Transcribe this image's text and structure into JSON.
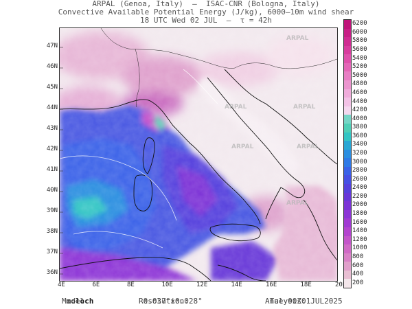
{
  "header": {
    "line1": "ARPAL (Genoa, Italy)  –  ISAC-CNR (Bologna, Italy)",
    "line2": "Convective Available Potential Energy (J/kg), 6000–10m wind shear",
    "line3": "18 UTC Wed 02 JUL  –  τ = 42h"
  },
  "map": {
    "lat_labels": [
      "47N",
      "46N",
      "45N",
      "44N",
      "43N",
      "42N",
      "41N",
      "40N",
      "39N",
      "38N",
      "37N",
      "36N"
    ],
    "lon_labels": [
      "4E",
      "6E",
      "8E",
      "10E",
      "12E",
      "14E",
      "16E",
      "18E",
      "20E"
    ],
    "watermark": "ARPAL"
  },
  "colorbar": {
    "labels": [
      "6200",
      "6000",
      "5800",
      "5600",
      "5400",
      "5200",
      "5000",
      "4800",
      "4600",
      "4400",
      "4200",
      "4000",
      "3800",
      "3600",
      "3400",
      "3200",
      "3000",
      "2800",
      "2600",
      "2400",
      "2200",
      "2000",
      "1800",
      "1600",
      "1400",
      "1200",
      "1000",
      "800",
      "600",
      "400",
      "200"
    ],
    "colors": [
      "#c0147a",
      "#c81f86",
      "#d02c92",
      "#d83c9e",
      "#df50ab",
      "#e466b7",
      "#e87ec4",
      "#ec95cf",
      "#f0acdb",
      "#f3c2e6",
      "#f5d8ef",
      "#76d6c6",
      "#4fcfb6",
      "#33c5c4",
      "#29a7d4",
      "#2b8ee0",
      "#2f7ae6",
      "#3a62e8",
      "#4650e4",
      "#5541dd",
      "#6837d8",
      "#7b33d6",
      "#8d35d6",
      "#a13ad3",
      "#b444cf",
      "#c455ca",
      "#d06ac6",
      "#d982c7",
      "#e1a0cb",
      "#e9bfd3",
      "#f3e6ea"
    ]
  },
  "footer": {
    "model_label": "Model:",
    "model_value": "moloch",
    "resolution_label": "Resolution:",
    "resolution_value": "0.037°×0.028°",
    "analysis_label": "Analysis:",
    "analysis_value": "Tue 00Z01JUL2025"
  }
}
